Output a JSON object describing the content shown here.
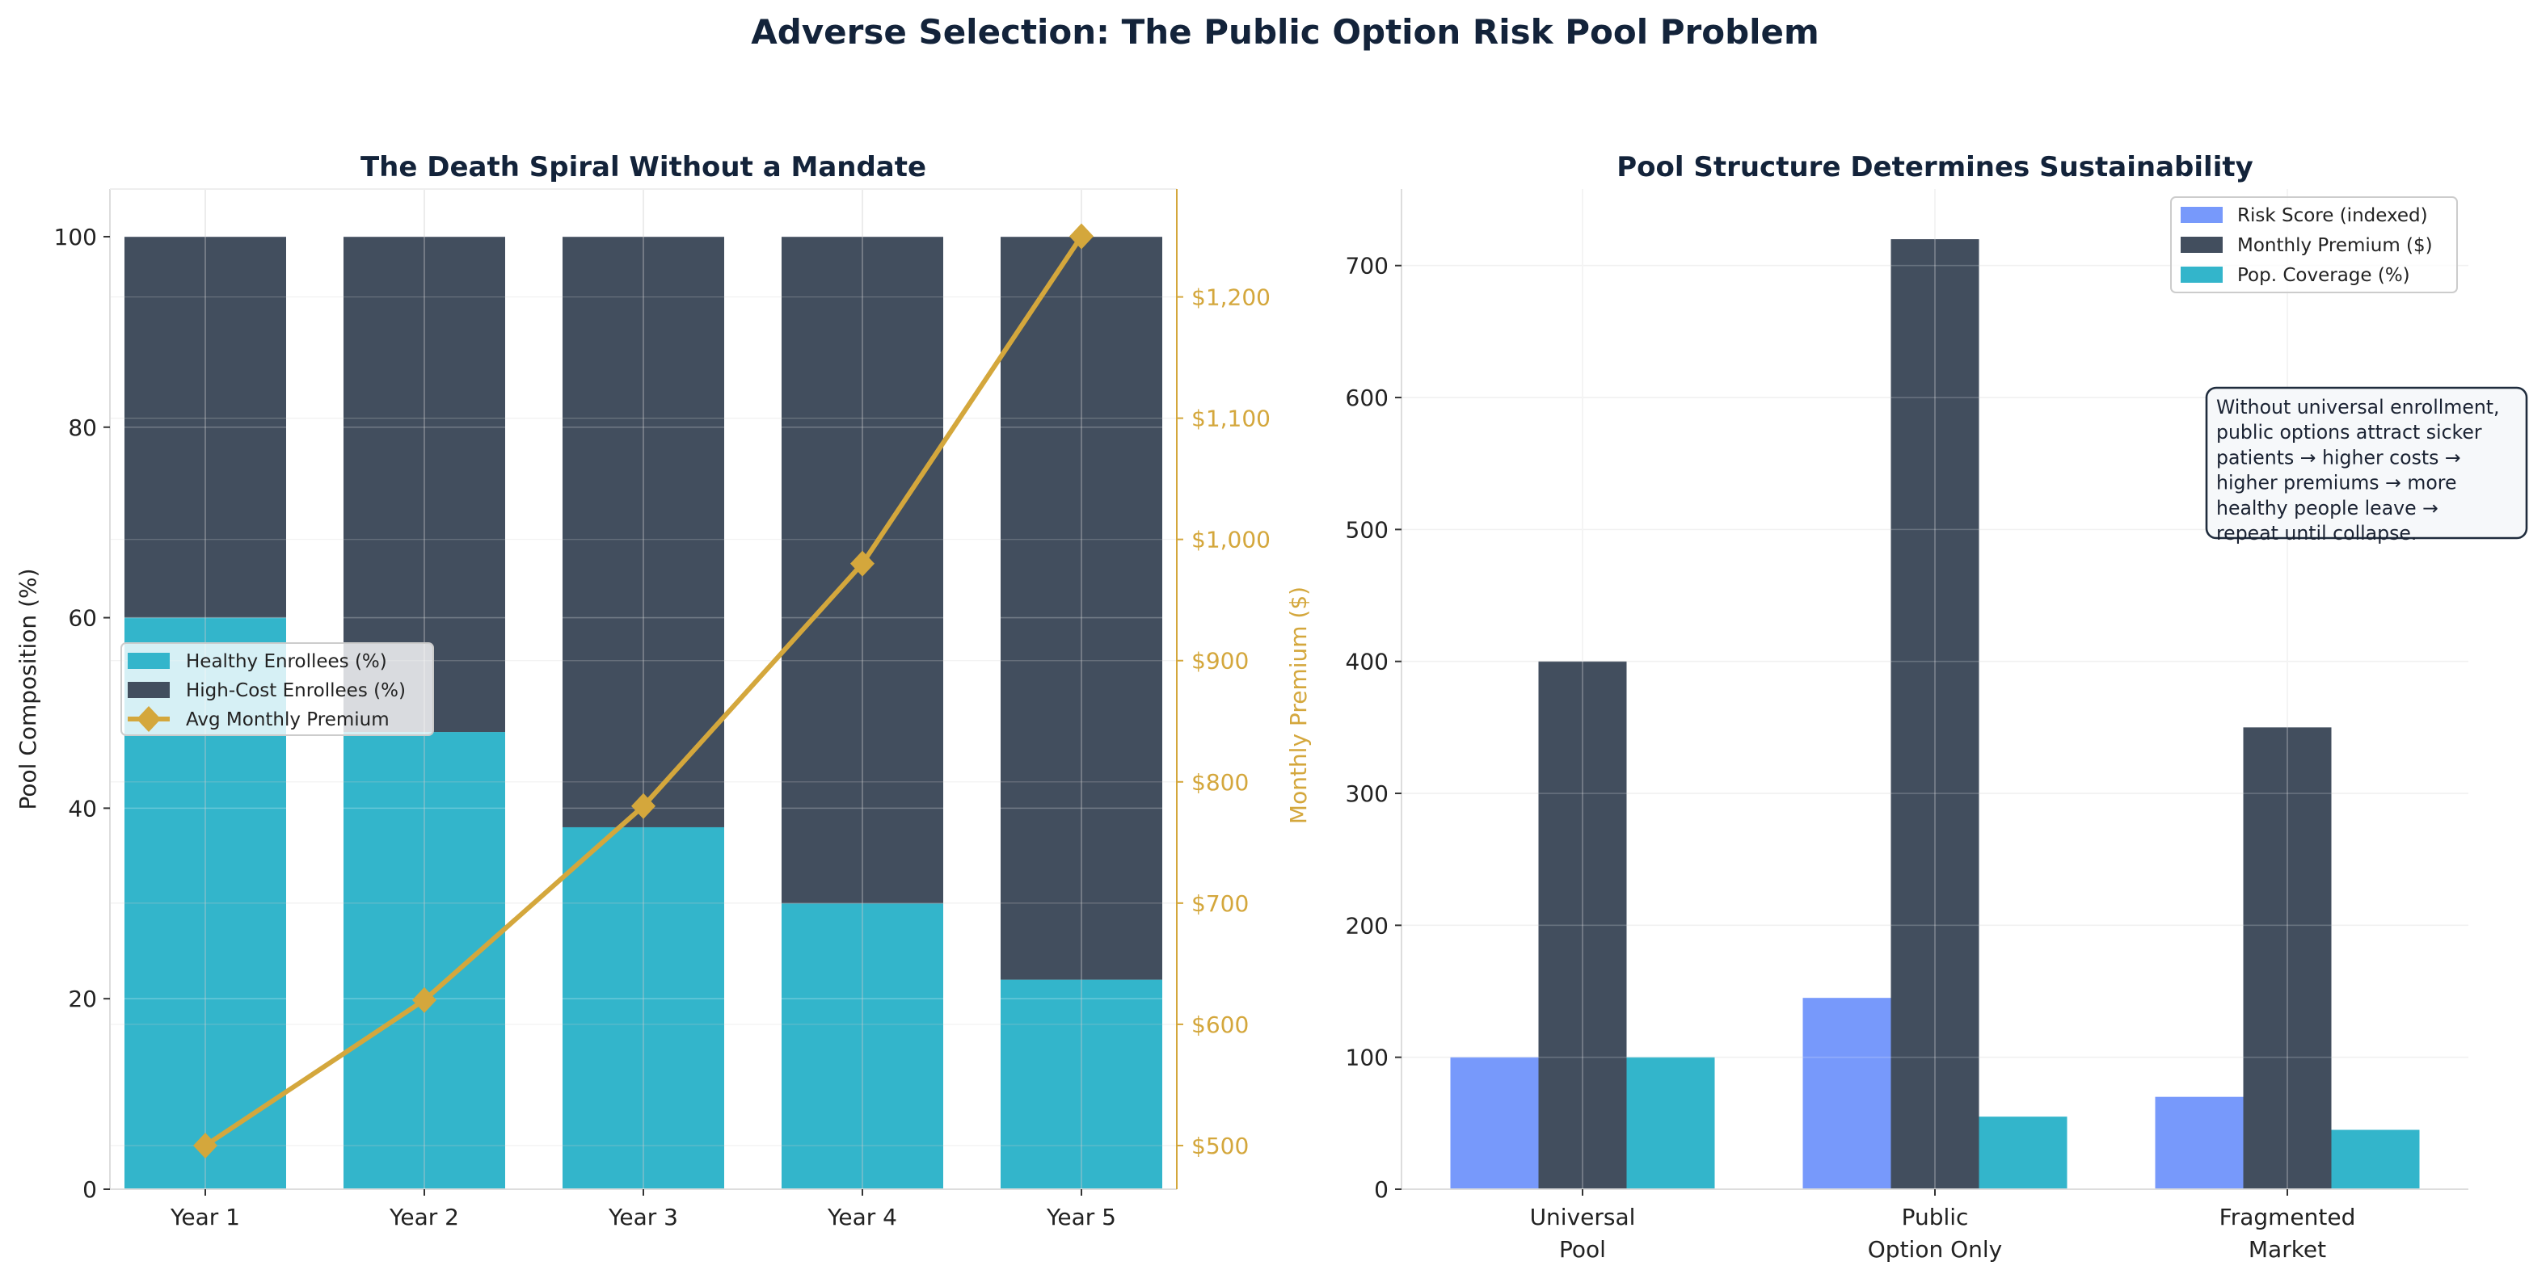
{
  "title": "Adverse Selection: The Public Option Risk Pool Problem",
  "colors": {
    "healthy": "#33b5cb",
    "high_cost": "#424e5e",
    "premium_line": "#d4a73c",
    "risk": "#7799fb",
    "title": "#13233a"
  },
  "chart_data": [
    {
      "type": "bar",
      "stacked": true,
      "title": "The Death Spiral Without a Mandate",
      "categories": [
        "Year 1",
        "Year 2",
        "Year 3",
        "Year 4",
        "Year 5"
      ],
      "ylabel": "Pool Composition (%)",
      "ylim": [
        0,
        105
      ],
      "yticks": [
        0,
        20,
        40,
        60,
        80,
        100
      ],
      "y2label": "Monthly Premium ($)",
      "y2lim": [
        464,
        1289
      ],
      "y2ticks": [
        500,
        600,
        700,
        800,
        900,
        1000,
        1100,
        1200
      ],
      "y2ticklabels": [
        "$500",
        "$600",
        "$700",
        "$800",
        "$900",
        "$1,000",
        "$1,100",
        "$1,200"
      ],
      "grid": true,
      "legend_position": "center-left",
      "series": [
        {
          "name": "Healthy Enrollees (%)",
          "type": "bar",
          "values": [
            60,
            48,
            38,
            30,
            22
          ]
        },
        {
          "name": "High-Cost Enrollees (%)",
          "type": "bar",
          "values": [
            40,
            52,
            62,
            70,
            78
          ]
        },
        {
          "name": "Avg Monthly Premium",
          "type": "line",
          "axis": "y2",
          "marker": "diamond",
          "values": [
            500,
            620,
            780,
            980,
            1250
          ]
        }
      ]
    },
    {
      "type": "bar",
      "grouped": true,
      "title": "Pool Structure Determines Sustainability",
      "categories": [
        "Universal\nPool",
        "Public\nOption Only",
        "Fragmented\nMarket"
      ],
      "ylim": [
        0,
        758
      ],
      "yticks": [
        0,
        100,
        200,
        300,
        400,
        500,
        600,
        700
      ],
      "grid": true,
      "legend_position": "top-right",
      "series": [
        {
          "name": "Risk Score (indexed)",
          "values": [
            100,
            145,
            70
          ]
        },
        {
          "name": "Monthly Premium ($)",
          "values": [
            400,
            720,
            350
          ]
        },
        {
          "name": "Pop. Coverage (%)",
          "values": [
            100,
            55,
            45
          ]
        }
      ],
      "annotation": [
        "Without universal enrollment,",
        "public options attract sicker",
        "patients → higher costs →",
        "higher premiums → more",
        "healthy people leave →",
        "repeat until collapse."
      ]
    }
  ]
}
